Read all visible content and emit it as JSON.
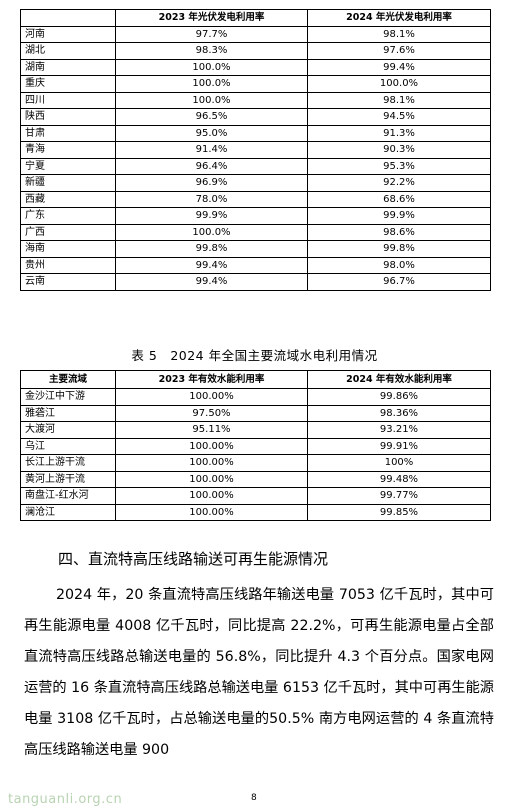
{
  "table4": {
    "headers": [
      "",
      "2023 年光伏发电利用率",
      "2024 年光伏发电利用率"
    ],
    "rows": [
      [
        "河南",
        "97.7%",
        "98.1%"
      ],
      [
        "湖北",
        "98.3%",
        "97.6%"
      ],
      [
        "湖南",
        "100.0%",
        "99.4%"
      ],
      [
        "重庆",
        "100.0%",
        "100.0%"
      ],
      [
        "四川",
        "100.0%",
        "98.1%"
      ],
      [
        "陕西",
        "96.5%",
        "94.5%"
      ],
      [
        "甘肃",
        "95.0%",
        "91.3%"
      ],
      [
        "青海",
        "91.4%",
        "90.3%"
      ],
      [
        "宁夏",
        "96.4%",
        "95.3%"
      ],
      [
        "新疆",
        "96.9%",
        "92.2%"
      ],
      [
        "西藏",
        "78.0%",
        "68.6%"
      ],
      [
        "广东",
        "99.9%",
        "99.9%"
      ],
      [
        "广西",
        "100.0%",
        "98.6%"
      ],
      [
        "海南",
        "99.8%",
        "99.8%"
      ],
      [
        "贵州",
        "99.4%",
        "98.0%"
      ],
      [
        "云南",
        "99.4%",
        "96.7%"
      ]
    ]
  },
  "table5": {
    "caption": "表 5　2024 年全国主要流域水电利用情况",
    "headers": [
      "主要流域",
      "2023 年有效水能利用率",
      "2024 年有效水能利用率"
    ],
    "rows": [
      [
        "金沙江中下游",
        "100.00%",
        "99.86%"
      ],
      [
        "雅砻江",
        "97.50%",
        "98.36%"
      ],
      [
        "大渡河",
        "95.11%",
        "93.21%"
      ],
      [
        "乌江",
        "100.00%",
        "99.91%"
      ],
      [
        "长江上游干流",
        "100.00%",
        "100%"
      ],
      [
        "黄河上游干流",
        "100.00%",
        "99.48%"
      ],
      [
        "南盘江-红水河",
        "100.00%",
        "99.77%"
      ],
      [
        "澜沧江",
        "100.00%",
        "99.85%"
      ]
    ]
  },
  "section": {
    "heading": "四、直流特高压线路输送可再生能源情况",
    "paragraph": "2024 年，20 条直流特高压线路年输送电量 7053 亿千瓦时，其中可再生能源电量 4008 亿千瓦时，同比提高 22.2%，可再生能源电量占全部直流特高压线路总输送电量的 56.8%，同比提升 4.3 个百分点。国家电网运营的 16 条直流特高压线路总输送电量 6153 亿千瓦时，其中可再生能源电量 3108 亿千瓦时，占总输送电量的50.5% 南方电网运营的 4 条直流特高压线路输送电量 900"
  },
  "footer": {
    "watermark": "tanguanli.org.cn",
    "page_number": "8"
  }
}
